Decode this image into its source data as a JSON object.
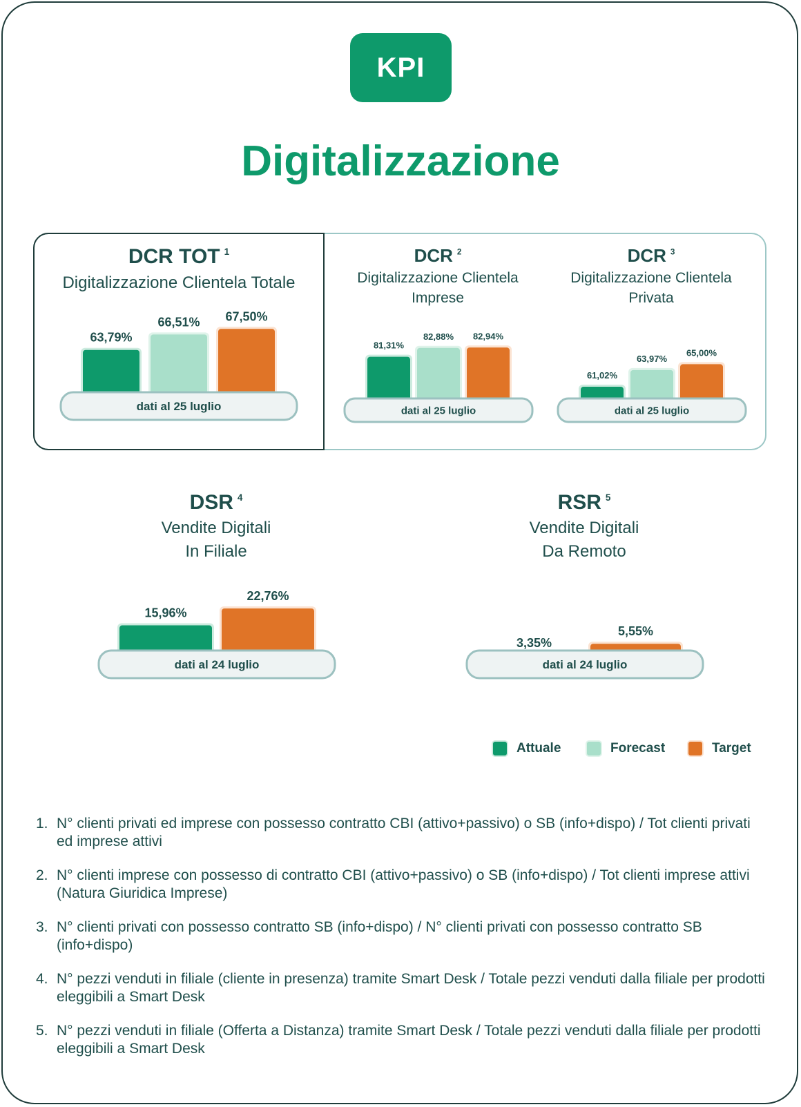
{
  "badge": "KPI",
  "title": "Digitalizzazione",
  "colors": {
    "attuale": "#0e9a6b",
    "forecast": "#a9dfca",
    "target": "#e07427",
    "dark": "#1f4e4b"
  },
  "legend": [
    {
      "key": "attuale",
      "label": "Attuale"
    },
    {
      "key": "forecast",
      "label": "Forecast"
    },
    {
      "key": "target",
      "label": "Target"
    }
  ],
  "chart_data": [
    {
      "type": "bar",
      "title": "DCR TOT",
      "footnote_ref": "1",
      "subtitle": [
        "Digitalizzazione Clientela Totale"
      ],
      "categories": [
        "Attuale",
        "Forecast",
        "Target"
      ],
      "values": [
        63.79,
        66.51,
        67.5
      ],
      "labels": [
        "63,79%",
        "66,51%",
        "67,50%"
      ],
      "date_label": "dati al 25 luglio"
    },
    {
      "type": "bar",
      "title": "DCR",
      "footnote_ref": "2",
      "subtitle": [
        "Digitalizzazione Clientela",
        "Imprese"
      ],
      "categories": [
        "Attuale",
        "Forecast",
        "Target"
      ],
      "values": [
        81.31,
        82.88,
        82.94
      ],
      "labels": [
        "81,31%",
        "82,88%",
        "82,94%"
      ],
      "date_label": "dati al 25 luglio"
    },
    {
      "type": "bar",
      "title": "DCR",
      "footnote_ref": "3",
      "subtitle": [
        "Digitalizzazione Clientela",
        "Privata"
      ],
      "categories": [
        "Attuale",
        "Forecast",
        "Target"
      ],
      "values": [
        61.02,
        63.97,
        65.0
      ],
      "labels": [
        "61,02%",
        "63,97%",
        "65,00%"
      ],
      "date_label": "dati al 25 luglio"
    },
    {
      "type": "bar",
      "title": "DSR",
      "footnote_ref": "4",
      "subtitle": [
        "Vendite Digitali",
        "In Filiale"
      ],
      "categories": [
        "Attuale",
        "Target"
      ],
      "values": [
        15.96,
        22.76
      ],
      "labels": [
        "15,96%",
        "22,76%"
      ],
      "date_label": "dati al 24 luglio"
    },
    {
      "type": "bar",
      "title": "RSR",
      "footnote_ref": "5",
      "subtitle": [
        "Vendite Digitali",
        "Da Remoto"
      ],
      "categories": [
        "Attuale",
        "Target"
      ],
      "values": [
        3.35,
        5.55
      ],
      "labels": [
        "3,35%",
        "5,55%"
      ],
      "date_label": "dati al 24 luglio"
    }
  ],
  "footnotes": [
    {
      "num": "1.",
      "text": "N° clienti privati ed imprese con possesso contratto CBI (attivo+passivo) o SB (info+dispo) / Tot clienti privati ed imprese attivi"
    },
    {
      "num": "2.",
      "text": "N° clienti imprese con possesso di contratto CBI (attivo+passivo)  o SB (info+dispo) / Tot clienti imprese attivi (Natura Giuridica Imprese)"
    },
    {
      "num": "3.",
      "text": "N° clienti privati con possesso contratto SB (info+dispo) / N° clienti privati con possesso contratto SB (info+dispo)"
    },
    {
      "num": "4.",
      "text": "N° pezzi venduti in filiale (cliente in presenza) tramite Smart Desk / Totale pezzi venduti dalla filiale per prodotti eleggibili a Smart Desk"
    },
    {
      "num": "5.",
      "text": "N° pezzi venduti in filiale (Offerta a Distanza) tramite Smart Desk / Totale pezzi venduti dalla filiale per prodotti eleggibili a Smart Desk"
    }
  ]
}
